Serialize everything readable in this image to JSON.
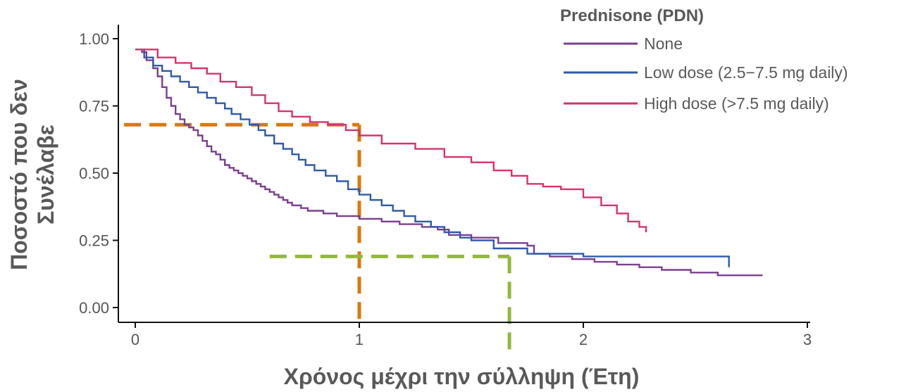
{
  "chart_data": {
    "type": "line",
    "step": true,
    "xlabel": "Χρόνος μέχρι την σύλληψη (Έτη)",
    "ylabel": [
      "Ποσοστό που δεν",
      "Συνέλαβε"
    ],
    "xlim": [
      -0.05,
      3.0
    ],
    "ylim": [
      -0.05,
      1.05
    ],
    "x_ticks": [
      0,
      1,
      2,
      3
    ],
    "x_tick_labels": [
      "0",
      "1",
      "2",
      "3"
    ],
    "y_ticks": [
      0,
      0.25,
      0.5,
      0.75,
      1.0
    ],
    "y_tick_labels": [
      "0.00",
      "0.25",
      "0.50",
      "0.75",
      "1.00"
    ],
    "grid": false,
    "legend": {
      "title": "Prednisone (PDN)",
      "placement": "top-right"
    },
    "series": [
      {
        "name": "None",
        "color": "#7b3f8f",
        "x": [
          0,
          0.03,
          0.05,
          0.08,
          0.1,
          0.12,
          0.14,
          0.16,
          0.18,
          0.2,
          0.22,
          0.24,
          0.26,
          0.28,
          0.3,
          0.32,
          0.34,
          0.36,
          0.38,
          0.4,
          0.42,
          0.44,
          0.46,
          0.48,
          0.5,
          0.52,
          0.54,
          0.56,
          0.58,
          0.6,
          0.62,
          0.64,
          0.66,
          0.68,
          0.7,
          0.74,
          0.77,
          0.8,
          0.84,
          0.87,
          0.9,
          0.95,
          1.0,
          1.05,
          1.1,
          1.18,
          1.28,
          1.35,
          1.4,
          1.5,
          1.62,
          1.75,
          1.78,
          1.85,
          1.95,
          2.05,
          2.15,
          2.25,
          2.35,
          2.48,
          2.6,
          2.8
        ],
        "y": [
          0.96,
          0.95,
          0.92,
          0.89,
          0.86,
          0.82,
          0.78,
          0.75,
          0.72,
          0.7,
          0.68,
          0.67,
          0.66,
          0.64,
          0.62,
          0.6,
          0.58,
          0.57,
          0.55,
          0.53,
          0.52,
          0.51,
          0.5,
          0.49,
          0.48,
          0.47,
          0.46,
          0.45,
          0.44,
          0.43,
          0.42,
          0.41,
          0.4,
          0.39,
          0.38,
          0.37,
          0.36,
          0.36,
          0.35,
          0.35,
          0.34,
          0.34,
          0.33,
          0.33,
          0.32,
          0.31,
          0.3,
          0.29,
          0.27,
          0.26,
          0.24,
          0.23,
          0.2,
          0.19,
          0.18,
          0.17,
          0.16,
          0.15,
          0.14,
          0.13,
          0.12,
          0.12
        ]
      },
      {
        "name": "Low dose (2.5−7.5 mg daily)",
        "color": "#2e5aa8",
        "x": [
          0,
          0.04,
          0.08,
          0.12,
          0.16,
          0.2,
          0.24,
          0.28,
          0.32,
          0.36,
          0.4,
          0.43,
          0.47,
          0.51,
          0.55,
          0.58,
          0.62,
          0.66,
          0.7,
          0.73,
          0.76,
          0.8,
          0.85,
          0.9,
          0.95,
          1.0,
          1.05,
          1.1,
          1.15,
          1.2,
          1.25,
          1.32,
          1.38,
          1.45,
          1.5,
          1.6,
          1.75,
          2.0,
          2.3,
          2.65
        ],
        "y": [
          0.96,
          0.93,
          0.9,
          0.88,
          0.86,
          0.84,
          0.82,
          0.8,
          0.78,
          0.76,
          0.74,
          0.72,
          0.7,
          0.68,
          0.66,
          0.64,
          0.61,
          0.59,
          0.57,
          0.55,
          0.53,
          0.51,
          0.49,
          0.47,
          0.44,
          0.42,
          0.4,
          0.38,
          0.36,
          0.34,
          0.32,
          0.3,
          0.28,
          0.26,
          0.25,
          0.22,
          0.2,
          0.19,
          0.19,
          0.15
        ]
      },
      {
        "name": "High dose (>7.5 mg daily)",
        "color": "#d6336b",
        "x": [
          0,
          0.1,
          0.18,
          0.25,
          0.32,
          0.38,
          0.45,
          0.52,
          0.58,
          0.64,
          0.7,
          0.78,
          0.86,
          0.94,
          1.0,
          1.1,
          1.25,
          1.38,
          1.5,
          1.6,
          1.68,
          1.75,
          1.82,
          1.9,
          2.0,
          2.08,
          2.15,
          2.2,
          2.25,
          2.28
        ],
        "y": [
          0.96,
          0.93,
          0.91,
          0.89,
          0.87,
          0.84,
          0.82,
          0.79,
          0.76,
          0.73,
          0.71,
          0.69,
          0.68,
          0.66,
          0.64,
          0.61,
          0.59,
          0.56,
          0.54,
          0.51,
          0.49,
          0.46,
          0.45,
          0.44,
          0.41,
          0.38,
          0.35,
          0.32,
          0.3,
          0.28
        ]
      }
    ],
    "reference_lines": [
      {
        "name": "orange",
        "color": "#d97a0c",
        "horizontal": {
          "y": 0.68,
          "x_from": -0.05,
          "x_to": 1.0
        },
        "vertical": {
          "x": 1.0,
          "y_from": 0.68,
          "y_to": -0.05
        }
      },
      {
        "name": "green",
        "color": "#92b83a",
        "horizontal": {
          "y": 0.19,
          "x_from": 0.6,
          "x_to": 1.67
        },
        "vertical": {
          "x": 1.67,
          "y_from": 0.19,
          "y_to": -0.18
        }
      }
    ]
  }
}
